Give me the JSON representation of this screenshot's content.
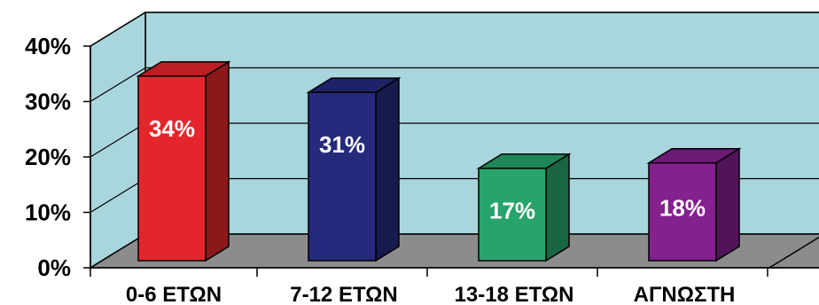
{
  "chart_data": {
    "type": "bar",
    "style": "3d",
    "categories": [
      "0-6 ΕΤΩΝ",
      "7-12 ΕΤΩΝ",
      "13-18 ΕΤΩΝ",
      "ΑΓΝΩΣΤΗ"
    ],
    "values": [
      34,
      31,
      17,
      18
    ],
    "data_labels": [
      "34%",
      "31%",
      "17%",
      "18%"
    ],
    "colors": [
      "#e4262c",
      "#252a7c",
      "#27a46c",
      "#85208f"
    ],
    "y_ticks": [
      "0%",
      "10%",
      "20%",
      "30%",
      "40%"
    ],
    "ylim": [
      0,
      40
    ],
    "grid": true,
    "legend": "none",
    "title": "",
    "xlabel": "",
    "ylabel": "",
    "background_colors": {
      "wall": "#a8d6dc",
      "floor": "#8c8c8c"
    }
  }
}
